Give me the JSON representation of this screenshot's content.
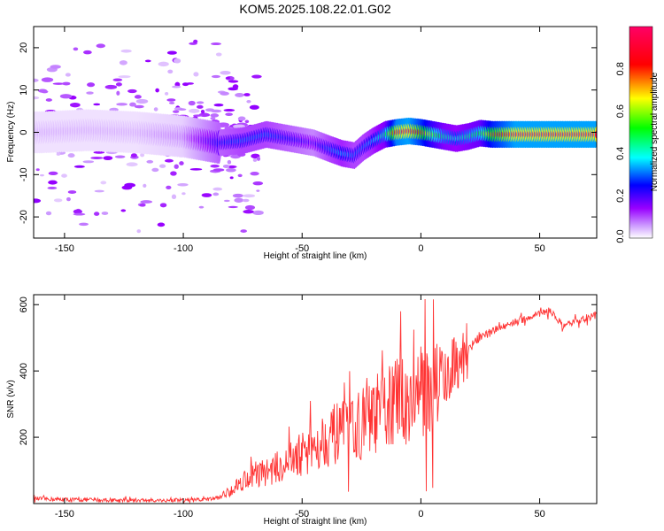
{
  "figure_title": "KOM5.2025.108.22.01.G02",
  "chart_data": [
    {
      "type": "heatmap",
      "title": "KOM5.2025.108.22.01.G02",
      "xlabel": "Height of straight line (km)",
      "ylabel": "Frequency (Hz)",
      "xlim": [
        -163,
        74
      ],
      "ylim": [
        -25,
        25
      ],
      "x_ticks": [
        -150,
        -100,
        -50,
        0,
        50
      ],
      "y_ticks": [
        -20,
        -10,
        0,
        10,
        20
      ],
      "grid": false,
      "colorbar": {
        "label": "Normalized spectral amplitude",
        "range": [
          0,
          1
        ],
        "ticks": [
          "0.0",
          "0.2",
          "0.4",
          "0.6",
          "0.8"
        ],
        "colors": [
          "#ffffff",
          "#9900ff",
          "#0000ff",
          "#00ffff",
          "#00ff00",
          "#ffff00",
          "#ff0000",
          "#ff0066"
        ]
      },
      "ridge": {
        "x": [
          -160,
          -140,
          -120,
          -100,
          -85,
          -75,
          -65,
          -55,
          -45,
          -38,
          -33,
          -28,
          -24,
          -20,
          -15,
          -10,
          -5,
          0,
          5,
          10,
          15,
          20,
          25,
          30,
          40,
          50,
          60,
          74
        ],
        "freq": [
          0,
          0.5,
          0,
          -1,
          -2.5,
          -2,
          -0.5,
          -1.5,
          -2.5,
          -4,
          -5,
          -5.5,
          -3.5,
          -2,
          -0.5,
          0,
          0.3,
          0,
          -0.5,
          -1,
          -1.5,
          -1,
          -0.2,
          -0.5,
          -0.5,
          -0.5,
          -0.5,
          -0.5
        ],
        "amplitude": [
          0.05,
          0.05,
          0.05,
          0.08,
          0.25,
          0.3,
          0.3,
          0.25,
          0.2,
          0.3,
          0.35,
          0.3,
          0.3,
          0.35,
          0.45,
          0.9,
          0.95,
          0.8,
          0.6,
          0.45,
          0.4,
          0.45,
          0.5,
          0.75,
          0.95,
          0.95,
          0.95,
          0.95
        ]
      }
    },
    {
      "type": "line",
      "xlabel": "Height of straight line (km)",
      "ylabel": "SNR (v/v)",
      "xlim": [
        -163,
        74
      ],
      "ylim": [
        0,
        630
      ],
      "x_ticks": [
        -150,
        -100,
        -50,
        0,
        50
      ],
      "y_ticks": [
        200,
        400,
        600
      ],
      "grid": false,
      "series": [
        {
          "color": "#ff3333",
          "x": [
            -163,
            -150,
            -120,
            -100,
            -90,
            -85,
            -80,
            -75,
            -70,
            -65,
            -60,
            -55,
            -50,
            -45,
            -40,
            -35,
            -30,
            -25,
            -20,
            -15,
            -10,
            -5,
            0,
            5,
            10,
            15,
            20,
            25,
            30,
            35,
            40,
            45,
            50,
            55,
            60,
            65,
            70,
            74
          ],
          "values": [
            15,
            12,
            10,
            10,
            12,
            18,
            40,
            70,
            90,
            95,
            110,
            130,
            150,
            175,
            200,
            210,
            220,
            240,
            260,
            290,
            310,
            320,
            330,
            350,
            380,
            430,
            470,
            500,
            520,
            535,
            550,
            560,
            575,
            580,
            530,
            550,
            560,
            570
          ]
        }
      ]
    }
  ]
}
